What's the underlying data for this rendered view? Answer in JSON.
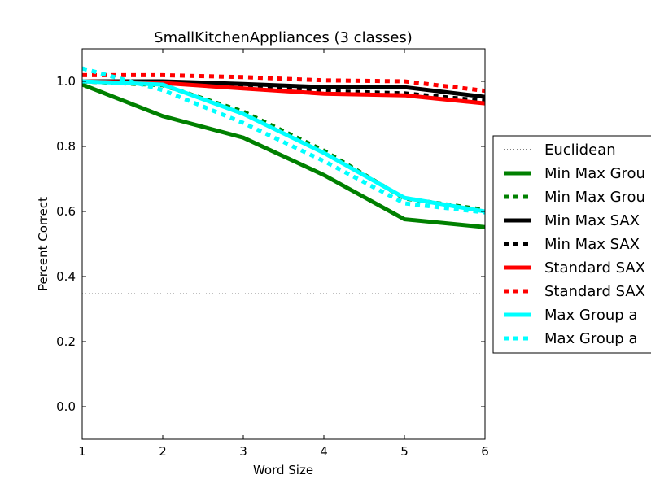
{
  "chart_data": {
    "type": "line",
    "title": "SmallKitchenAppliances (3 classes)",
    "xlabel": "Word Size",
    "ylabel": "Percent Correct",
    "xlim": [
      1,
      6
    ],
    "ylim": [
      -0.1,
      1.1
    ],
    "x_ticks": [
      "1",
      "2",
      "3",
      "4",
      "5",
      "6"
    ],
    "y_ticks": [
      "0.0",
      "0.2",
      "0.4",
      "0.6",
      "0.8",
      "1.0"
    ],
    "x": [
      1,
      2,
      3,
      4,
      5,
      6
    ],
    "grid": false,
    "legend_position": "right, outside plot (clipped)",
    "series": [
      {
        "name": "Euclidean",
        "color": "#000000",
        "style": "dotted",
        "values": [
          0.347,
          0.347,
          0.347,
          0.347,
          0.347,
          0.347
        ]
      },
      {
        "name": "Min Max Grou",
        "color": "#008000",
        "style": "solid",
        "values": [
          0.99,
          0.893,
          0.827,
          0.712,
          0.576,
          0.552
        ]
      },
      {
        "name": "Min Max Grou",
        "color": "#008000",
        "style": "dashed",
        "values": [
          1.0,
          0.988,
          0.907,
          0.787,
          0.64,
          0.605
        ]
      },
      {
        "name": "Min Max SAX",
        "color": "#000000",
        "style": "solid",
        "values": [
          1.0,
          1.0,
          0.992,
          0.982,
          0.982,
          0.952
        ]
      },
      {
        "name": "Min Max SAX",
        "color": "#000000",
        "style": "dashed",
        "values": [
          1.0,
          0.995,
          0.982,
          0.97,
          0.963,
          0.94
        ]
      },
      {
        "name": "Standard SAX",
        "color": "#ff0000",
        "style": "solid",
        "values": [
          1.0,
          0.995,
          0.978,
          0.962,
          0.957,
          0.932
        ]
      },
      {
        "name": "Standard SAX",
        "color": "#ff0000",
        "style": "dashed",
        "values": [
          1.019,
          1.019,
          1.013,
          1.003,
          1.0,
          0.971
        ]
      },
      {
        "name": "Max Group a",
        "color": "#00ffff",
        "style": "solid",
        "values": [
          1.0,
          0.99,
          0.9,
          0.78,
          0.642,
          0.6
        ]
      },
      {
        "name": "Max Group a",
        "color": "#00ffff",
        "style": "dashed",
        "values": [
          1.04,
          0.973,
          0.872,
          0.755,
          0.625,
          0.597
        ]
      }
    ]
  }
}
